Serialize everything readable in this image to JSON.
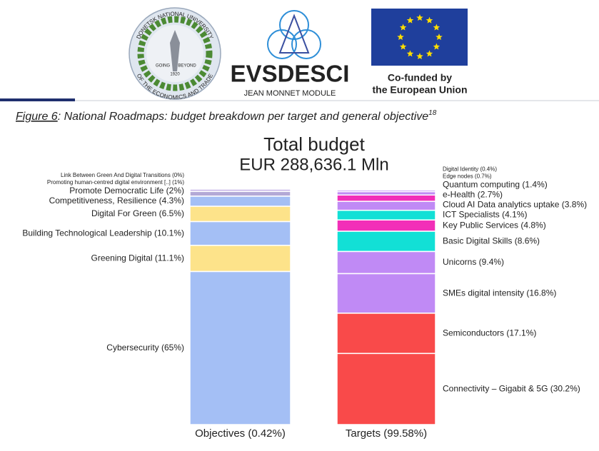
{
  "header": {
    "university": {
      "top": "DONETSK NATIONAL UNIVERSITY",
      "bottom": "OF THE ECONOMICS AND TRADE",
      "motto_left": "GOING",
      "motto_right": "BEYOND",
      "year": "1920"
    },
    "module": {
      "name": "EVSDESCI",
      "subtitle": "JEAN MONNET MODULE"
    },
    "eu": {
      "line1": "Co-funded by",
      "line2": "the European Union"
    }
  },
  "caption": {
    "figure": "Figure 6",
    "text": ": National Roadmaps: budget breakdown per target and general objective",
    "footnote": "18"
  },
  "chart_data": {
    "type": "stacked_column",
    "title": "Total budget",
    "subtitle": "EUR 288,636.1 Mln",
    "columns": [
      {
        "name": "Objectives (0.42%)",
        "segments": [
          {
            "label": "Link Between Green And Digital Transitions (0%)",
            "value": 0,
            "color": "#d9d2f0"
          },
          {
            "label": "Promoting human-centred digital environment [..] (1%)",
            "value": 1,
            "color": "#c9b8e8"
          },
          {
            "label": "Promote Democratic Life (2%)",
            "value": 2,
            "color": "#b3a8d6"
          },
          {
            "label": "Competitiveness, Resilience (4.3%)",
            "value": 4.3,
            "color": "#a4bff5"
          },
          {
            "label": "Digital For Green (6.5%)",
            "value": 6.5,
            "color": "#fde38a"
          },
          {
            "label": "Building Technological Leadership (10.1%)",
            "value": 10.1,
            "color": "#a4bff5"
          },
          {
            "label": "Greening Digital (11.1%)",
            "value": 11.1,
            "color": "#fde38a"
          },
          {
            "label": "Cybersecurity (65%)",
            "value": 65,
            "color": "#a4bff5"
          }
        ]
      },
      {
        "name": "Targets (99.58%)",
        "segments": [
          {
            "label": "Digital Identity (0.4%)",
            "value": 0.4,
            "color": "#f04fa8"
          },
          {
            "label": "Edge nodes (0.7%)",
            "value": 0.7,
            "color": "#c08af5"
          },
          {
            "label": "Quantum computing (1.4%)",
            "value": 1.4,
            "color": "#c08af5"
          },
          {
            "label": "e-Health (2.7%)",
            "value": 2.7,
            "color": "#f22fb8"
          },
          {
            "label": "Cloud AI Data analytics uptake (3.8%)",
            "value": 3.8,
            "color": "#c08af5"
          },
          {
            "label": "ICT Specialists (4.1%)",
            "value": 4.1,
            "color": "#12e0d6"
          },
          {
            "label": "Key Public Services (4.8%)",
            "value": 4.8,
            "color": "#f22fb8"
          },
          {
            "label": "Basic Digital Skills (8.6%)",
            "value": 8.6,
            "color": "#12e0d6"
          },
          {
            "label": "Unicorns (9.4%)",
            "value": 9.4,
            "color": "#c08af5"
          },
          {
            "label": "SMEs digital intensity (16.8%)",
            "value": 16.8,
            "color": "#c08af5"
          },
          {
            "label": "Semiconductors (17.1%)",
            "value": 17.1,
            "color": "#f94a4a"
          },
          {
            "label": "Connectivity – Gigabit & 5G (30.2%)",
            "value": 30.2,
            "color": "#f94a4a"
          }
        ]
      }
    ]
  }
}
